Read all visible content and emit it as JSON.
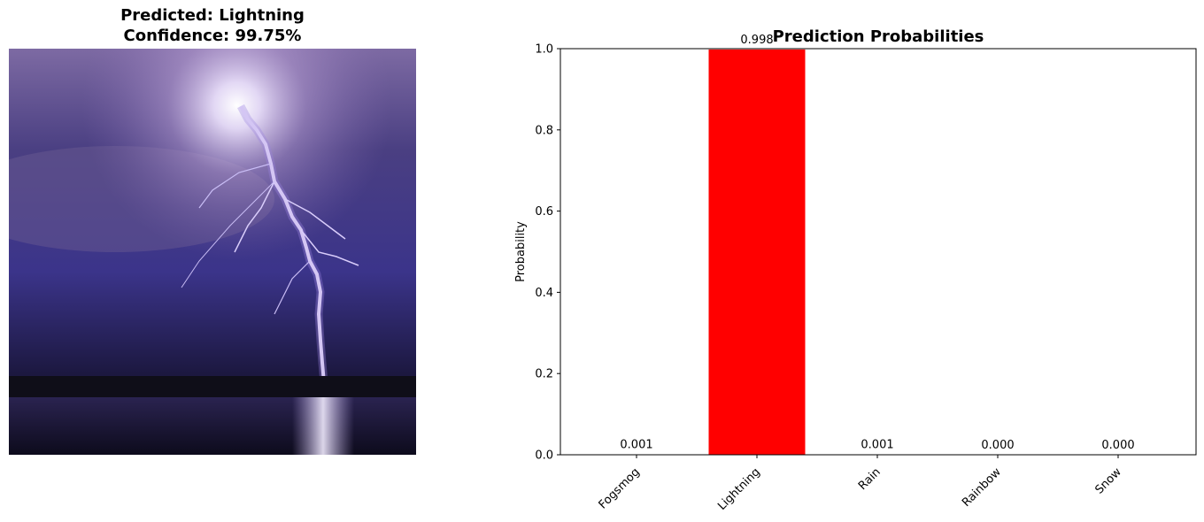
{
  "image_panel": {
    "title_line1": "Predicted: Lightning",
    "title_line2": "Confidence: 99.75%",
    "image_subject": "lightning-bolt-over-water"
  },
  "chart_data": {
    "type": "bar",
    "title": "Prediction Probabilities",
    "xlabel": "",
    "ylabel": "Probability",
    "ylim": [
      0,
      1.0
    ],
    "yticks": [
      0.0,
      0.2,
      0.4,
      0.6,
      0.8,
      1.0
    ],
    "ytick_labels": [
      "0.0",
      "0.2",
      "0.4",
      "0.6",
      "0.8",
      "1.0"
    ],
    "categories": [
      "Fogsmog",
      "Lightning",
      "Rain",
      "Rainbow",
      "Snow"
    ],
    "values": [
      0.001,
      0.998,
      0.001,
      0.0,
      0.0
    ],
    "value_labels": [
      "0.001",
      "0.998",
      "0.001",
      "0.000",
      "0.000"
    ],
    "bar_colors": [
      "#ff0000",
      "#ff0000",
      "#ff0000",
      "#ff0000",
      "#ff0000"
    ],
    "grid": false
  }
}
